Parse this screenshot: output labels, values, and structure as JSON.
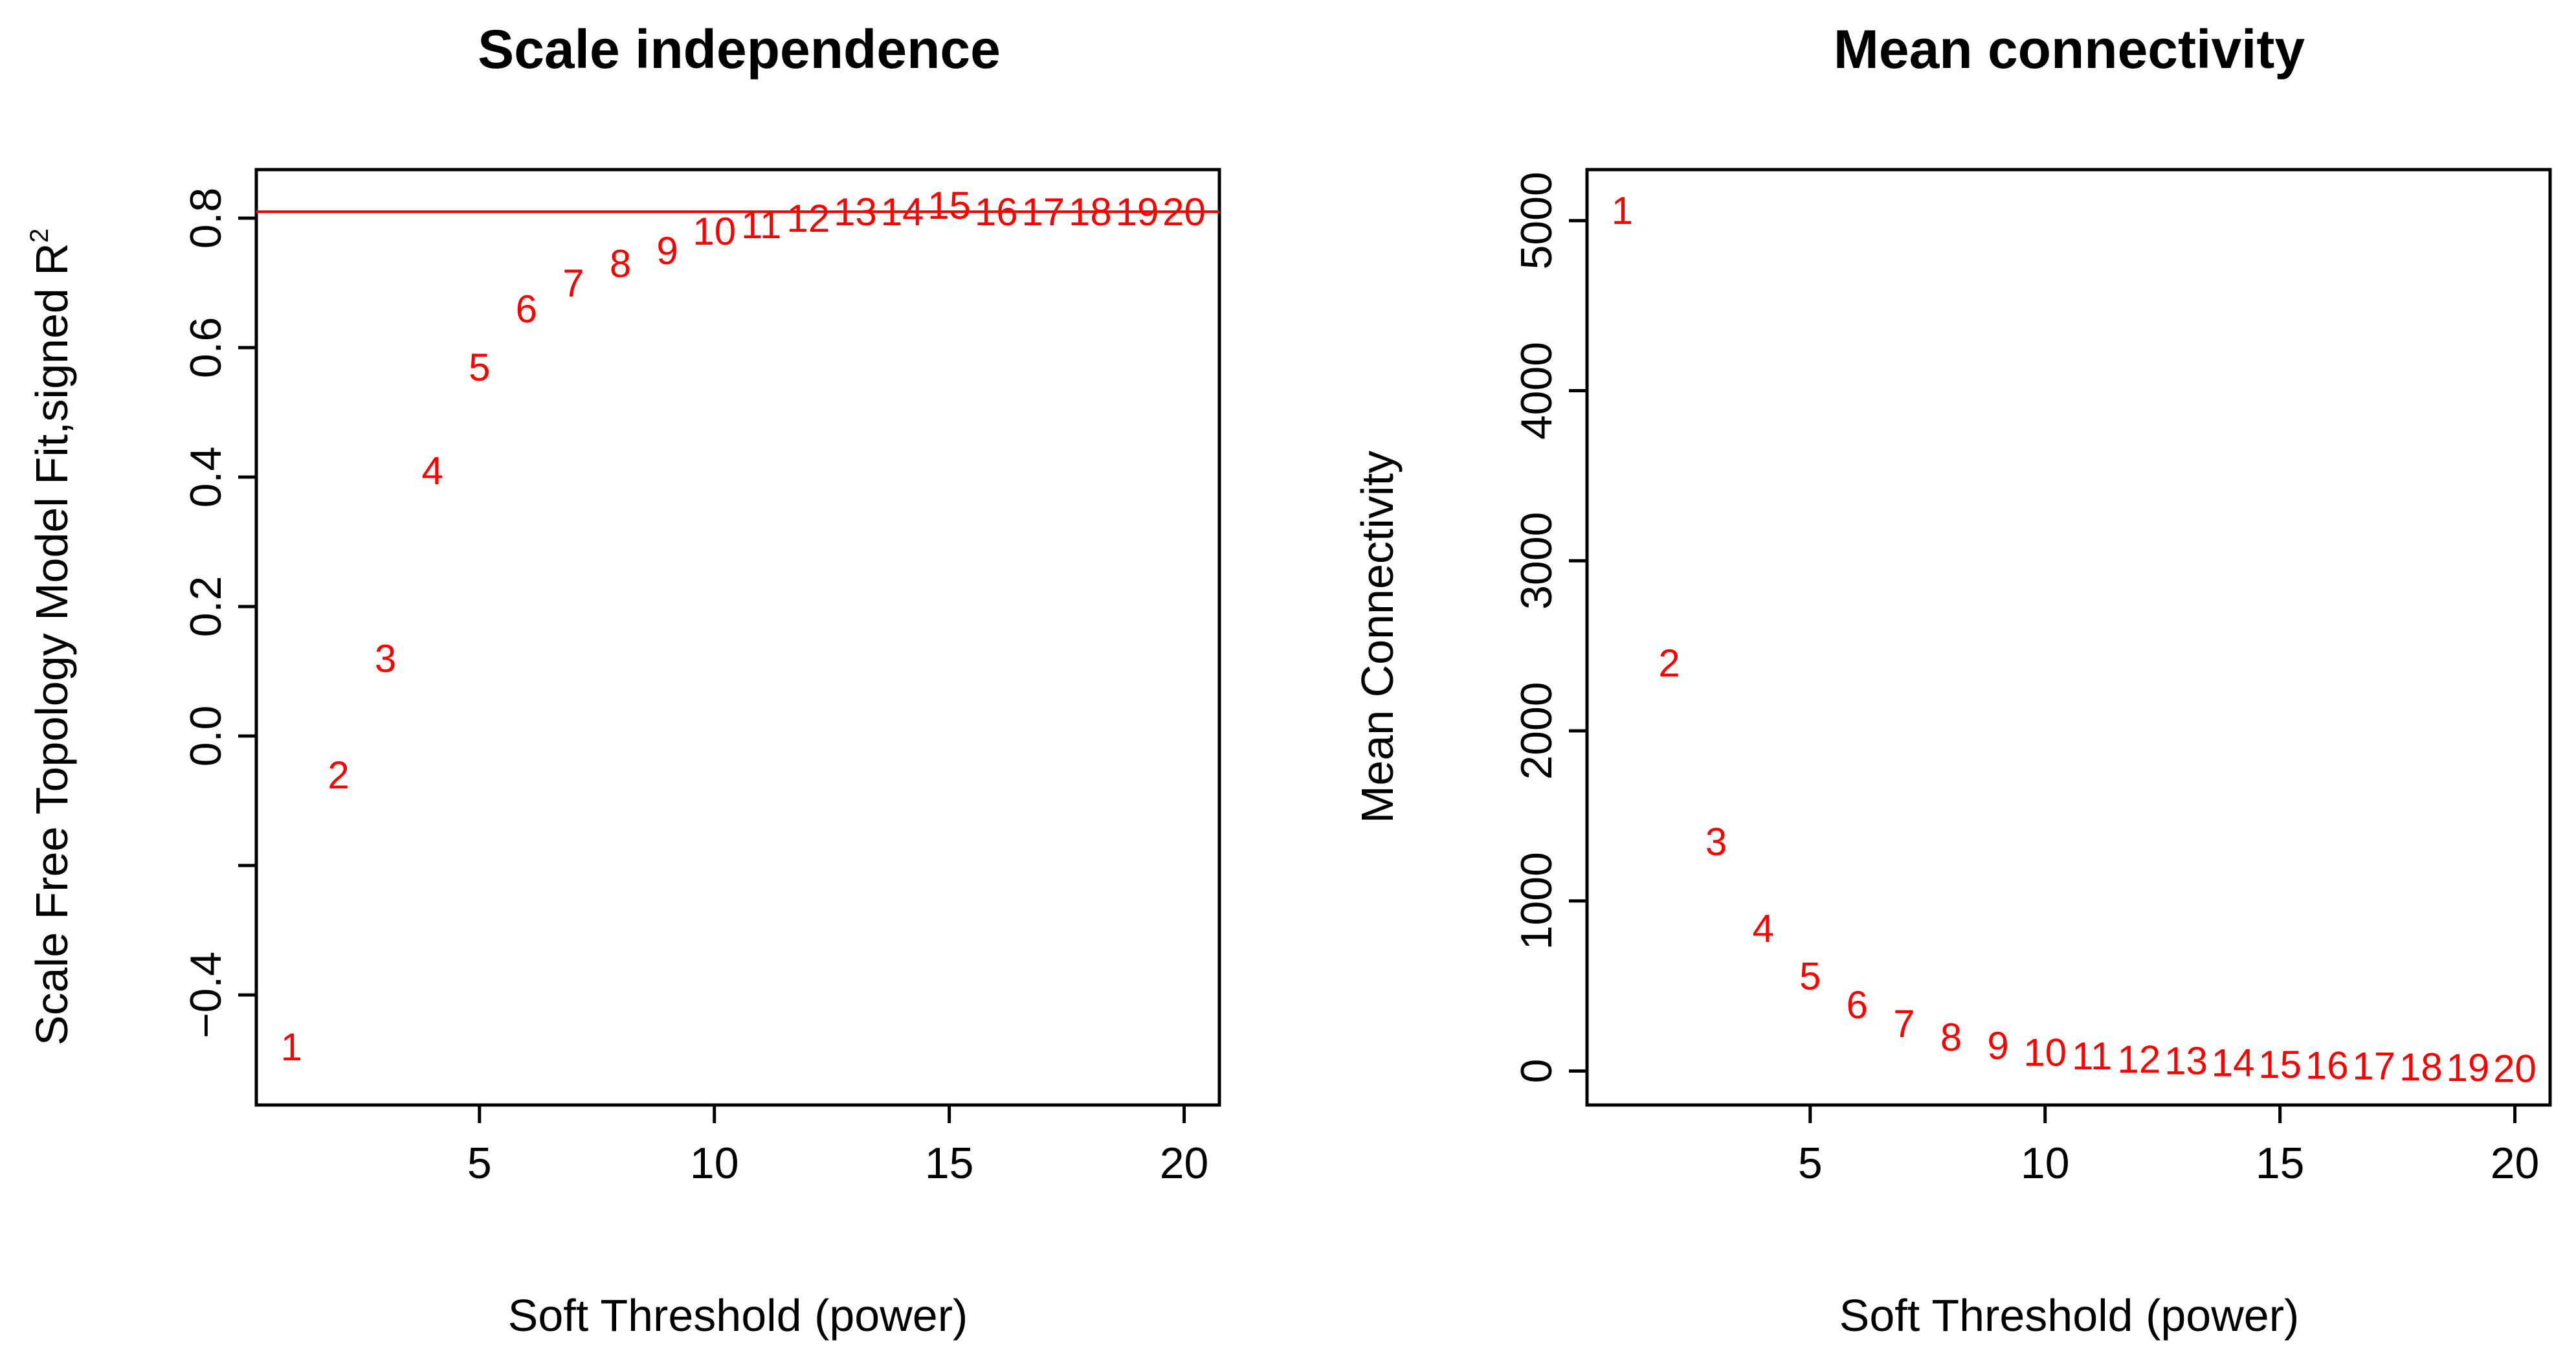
{
  "chart_data": [
    {
      "type": "scatter",
      "marker": "text-labels",
      "title": "Scale independence",
      "xlabel": "Soft Threshold (power)",
      "ylabel_main": "Scale Free Topology Model Fit,signed R",
      "ylabel_superscript": "2",
      "xlim": [
        0.25,
        20.75
      ],
      "ylim": [
        -0.57,
        0.875
      ],
      "x_ticks": [
        5,
        10,
        15,
        20
      ],
      "x_tick_labels": [
        "5",
        "10",
        "15",
        "20"
      ],
      "y_ticks": [
        -0.4,
        -0.2,
        0.0,
        0.2,
        0.4,
        0.6,
        0.8
      ],
      "y_tick_labels": [
        "−0.4",
        "",
        "0.0",
        "0.2",
        "0.4",
        "0.6",
        "0.8"
      ],
      "hline": 0.81,
      "color": "#ff0000",
      "grid": false,
      "points": {
        "x": [
          1,
          2,
          3,
          4,
          5,
          6,
          7,
          8,
          9,
          10,
          11,
          12,
          13,
          14,
          15,
          16,
          17,
          18,
          19,
          20
        ],
        "y": [
          -0.48,
          -0.06,
          0.12,
          0.41,
          0.57,
          0.66,
          0.7,
          0.73,
          0.75,
          0.78,
          0.79,
          0.8,
          0.81,
          0.81,
          0.82,
          0.81,
          0.81,
          0.81,
          0.81,
          0.81
        ],
        "labels": [
          "1",
          "2",
          "3",
          "4",
          "5",
          "6",
          "7",
          "8",
          "9",
          "10",
          "11",
          "12",
          "13",
          "14",
          "15",
          "16",
          "17",
          "18",
          "19",
          "20"
        ]
      }
    },
    {
      "type": "scatter",
      "marker": "text-labels",
      "title": "Mean connectivity",
      "xlabel": "Soft Threshold (power)",
      "ylabel": "Mean Connectivity",
      "xlim": [
        0.25,
        20.75
      ],
      "ylim": [
        -200,
        5300
      ],
      "x_ticks": [
        5,
        10,
        15,
        20
      ],
      "x_tick_labels": [
        "5",
        "10",
        "15",
        "20"
      ],
      "y_ticks": [
        0,
        1000,
        2000,
        3000,
        4000,
        5000
      ],
      "y_tick_labels": [
        "0",
        "1000",
        "2000",
        "3000",
        "4000",
        "5000"
      ],
      "color": "#ff0000",
      "grid": false,
      "points": {
        "x": [
          1,
          2,
          3,
          4,
          5,
          6,
          7,
          8,
          9,
          10,
          11,
          12,
          13,
          14,
          15,
          16,
          17,
          18,
          19,
          20
        ],
        "y": [
          5060,
          2400,
          1350,
          840,
          560,
          390,
          280,
          200,
          150,
          110,
          90,
          70,
          60,
          50,
          40,
          35,
          30,
          25,
          20,
          15
        ],
        "labels": [
          "1",
          "2",
          "3",
          "4",
          "5",
          "6",
          "7",
          "8",
          "9",
          "10",
          "11",
          "12",
          "13",
          "14",
          "15",
          "16",
          "17",
          "18",
          "19",
          "20"
        ]
      }
    }
  ]
}
